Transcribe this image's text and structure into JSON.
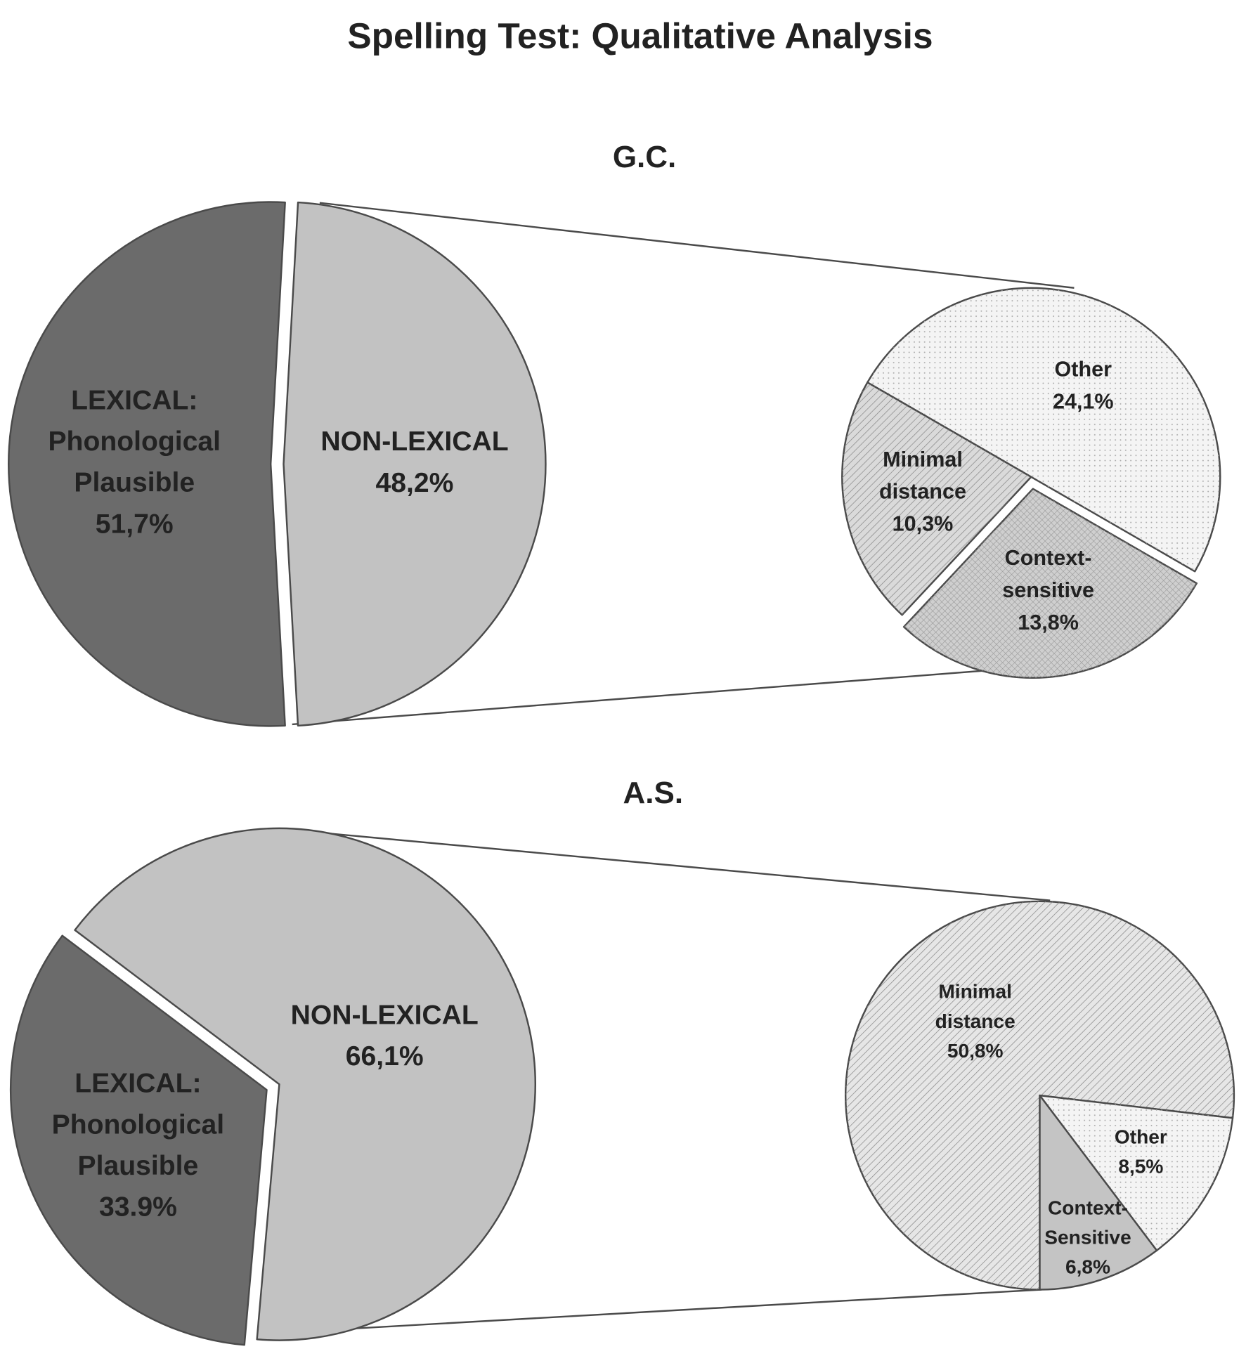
{
  "title": "Spelling Test: Qualitative Analysis",
  "chart_data": [
    {
      "type": "pie-of-pie",
      "title": "G.C.",
      "categories": [
        [
          "LEXICAL:",
          "Phonological",
          "Plausible"
        ],
        [
          "NON-LEXICAL"
        ]
      ],
      "values": [
        51.7,
        48.2
      ],
      "value_labels": [
        "51,7%",
        "48,2%"
      ],
      "colors": [
        "#6b6b6b",
        "#c2c2c2"
      ],
      "breakdown": {
        "categories": [
          [
            "Other"
          ],
          [
            "Minimal",
            "distance"
          ],
          [
            "Context-",
            "sensitive"
          ]
        ],
        "values": [
          24.1,
          10.3,
          13.8
        ],
        "value_labels": [
          "24,1%",
          "10,3%",
          "13,8%"
        ],
        "colors": [
          "#f4f4f4",
          "#dadada",
          "#cfcfcf"
        ]
      }
    },
    {
      "type": "pie-of-pie",
      "title": "A.S.",
      "categories": [
        [
          "LEXICAL:",
          "Phonological",
          "Plausible"
        ],
        [
          "NON-LEXICAL"
        ]
      ],
      "values": [
        33.9,
        66.1
      ],
      "value_labels": [
        "33.9%",
        "66,1%"
      ],
      "colors": [
        "#6b6b6b",
        "#c2c2c2"
      ],
      "breakdown": {
        "categories": [
          [
            "Minimal",
            "distance"
          ],
          [
            "Other"
          ],
          [
            "Context-",
            "Sensitive"
          ]
        ],
        "values": [
          50.8,
          8.5,
          6.8
        ],
        "value_labels": [
          "50,8%",
          "8,5%",
          "6,8%"
        ],
        "colors": [
          "#e6e6e6",
          "#f4f4f4",
          "#c4c4c4"
        ]
      }
    }
  ]
}
